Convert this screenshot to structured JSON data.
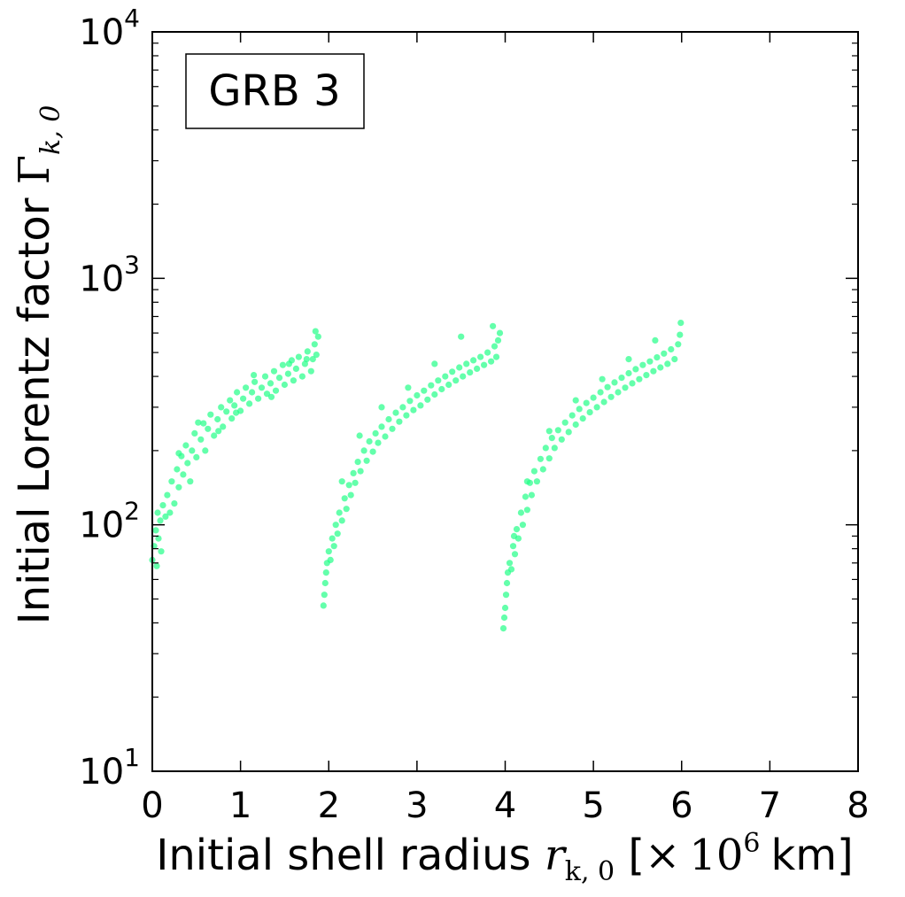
{
  "chart_data": {
    "type": "scatter",
    "title": "",
    "annotation": "GRB 3",
    "xlabel": {
      "text": "Initial shell radius ",
      "math_var": "r",
      "math_sub": "k, 0",
      "bracket_open": " [",
      "times": "×",
      "base": "10",
      "exp": "6",
      "unit": "km",
      "bracket_close": "]"
    },
    "ylabel": {
      "text": "Initial Lorentz factor ",
      "math_var": "Γ",
      "math_sub": "k, 0"
    },
    "xlim": [
      0,
      8
    ],
    "ylim": [
      10,
      10000
    ],
    "yscale": "log",
    "xticks": [
      "0",
      "1",
      "2",
      "3",
      "4",
      "5",
      "6",
      "7",
      "8"
    ],
    "yticks": [
      {
        "base": "10",
        "exp": "1"
      },
      {
        "base": "10",
        "exp": "2"
      },
      {
        "base": "10",
        "exp": "3"
      },
      {
        "base": "10",
        "exp": "4"
      }
    ],
    "grid": false,
    "legend": "none",
    "marker_color": "#22ff88",
    "series": [
      {
        "points": [
          [
            0.0,
            72
          ],
          [
            0.02,
            82
          ],
          [
            0.04,
            95
          ],
          [
            0.05,
            68
          ],
          [
            0.07,
            88
          ],
          [
            0.09,
            104
          ],
          [
            0.1,
            78
          ],
          [
            0.12,
            120
          ],
          [
            0.15,
            108
          ],
          [
            0.17,
            132
          ],
          [
            0.2,
            112
          ],
          [
            0.22,
            150
          ],
          [
            0.25,
            122
          ],
          [
            0.28,
            168
          ],
          [
            0.3,
            142
          ],
          [
            0.33,
            190
          ],
          [
            0.35,
            160
          ],
          [
            0.38,
            210
          ],
          [
            0.4,
            178
          ],
          [
            0.43,
            150
          ],
          [
            0.45,
            200
          ],
          [
            0.48,
            235
          ],
          [
            0.5,
            188
          ],
          [
            0.55,
            222
          ],
          [
            0.58,
            258
          ],
          [
            0.6,
            200
          ],
          [
            0.63,
            245
          ],
          [
            0.66,
            280
          ],
          [
            0.7,
            230
          ],
          [
            0.74,
            268
          ],
          [
            0.78,
            300
          ],
          [
            0.8,
            250
          ],
          [
            0.84,
            288
          ],
          [
            0.88,
            320
          ],
          [
            0.9,
            270
          ],
          [
            0.93,
            305
          ],
          [
            0.96,
            345
          ],
          [
            1.0,
            290
          ],
          [
            1.03,
            325
          ],
          [
            1.06,
            360
          ],
          [
            1.1,
            310
          ],
          [
            1.13,
            345
          ],
          [
            1.16,
            380
          ],
          [
            1.2,
            325
          ],
          [
            1.24,
            360
          ],
          [
            1.28,
            400
          ],
          [
            1.3,
            340
          ],
          [
            1.34,
            375
          ],
          [
            1.38,
            420
          ],
          [
            1.4,
            350
          ],
          [
            1.44,
            395
          ],
          [
            1.48,
            445
          ],
          [
            1.5,
            370
          ],
          [
            1.54,
            410
          ],
          [
            1.58,
            465
          ],
          [
            1.6,
            385
          ],
          [
            1.63,
            430
          ],
          [
            1.66,
            480
          ],
          [
            1.7,
            400
          ],
          [
            1.73,
            450
          ],
          [
            1.76,
            505
          ],
          [
            1.8,
            420
          ],
          [
            1.82,
            470
          ],
          [
            1.84,
            540
          ],
          [
            1.86,
            490
          ],
          [
            1.88,
            580
          ],
          [
            0.06,
            112
          ],
          [
            0.3,
            195
          ],
          [
            0.52,
            260
          ],
          [
            0.75,
            240
          ],
          [
            0.95,
            285
          ],
          [
            1.15,
            405
          ],
          [
            1.35,
            330
          ],
          [
            1.55,
            450
          ],
          [
            1.75,
            470
          ],
          [
            1.85,
            610
          ]
        ]
      },
      {
        "points": [
          [
            1.94,
            47
          ],
          [
            1.95,
            52
          ],
          [
            1.96,
            58
          ],
          [
            1.97,
            64
          ],
          [
            1.98,
            70
          ],
          [
            2.0,
            78
          ],
          [
            2.02,
            72
          ],
          [
            2.04,
            88
          ],
          [
            2.06,
            82
          ],
          [
            2.08,
            100
          ],
          [
            2.1,
            92
          ],
          [
            2.12,
            112
          ],
          [
            2.15,
            104
          ],
          [
            2.18,
            128
          ],
          [
            2.2,
            116
          ],
          [
            2.23,
            145
          ],
          [
            2.25,
            132
          ],
          [
            2.28,
            162
          ],
          [
            2.3,
            148
          ],
          [
            2.33,
            180
          ],
          [
            2.36,
            165
          ],
          [
            2.4,
            200
          ],
          [
            2.43,
            182
          ],
          [
            2.46,
            218
          ],
          [
            2.5,
            198
          ],
          [
            2.53,
            235
          ],
          [
            2.56,
            215
          ],
          [
            2.6,
            250
          ],
          [
            2.64,
            228
          ],
          [
            2.68,
            268
          ],
          [
            2.72,
            245
          ],
          [
            2.76,
            285
          ],
          [
            2.8,
            262
          ],
          [
            2.84,
            300
          ],
          [
            2.88,
            278
          ],
          [
            2.92,
            318
          ],
          [
            2.96,
            292
          ],
          [
            3.0,
            335
          ],
          [
            3.04,
            305
          ],
          [
            3.08,
            350
          ],
          [
            3.12,
            322
          ],
          [
            3.16,
            368
          ],
          [
            3.2,
            338
          ],
          [
            3.24,
            385
          ],
          [
            3.28,
            355
          ],
          [
            3.32,
            400
          ],
          [
            3.36,
            370
          ],
          [
            3.4,
            418
          ],
          [
            3.44,
            385
          ],
          [
            3.48,
            435
          ],
          [
            3.52,
            400
          ],
          [
            3.56,
            450
          ],
          [
            3.6,
            415
          ],
          [
            3.64,
            465
          ],
          [
            3.68,
            430
          ],
          [
            3.72,
            480
          ],
          [
            3.76,
            445
          ],
          [
            3.8,
            500
          ],
          [
            3.84,
            460
          ],
          [
            3.88,
            530
          ],
          [
            3.9,
            480
          ],
          [
            3.92,
            560
          ],
          [
            3.94,
            600
          ],
          [
            3.86,
            640
          ],
          [
            3.5,
            580
          ],
          [
            3.2,
            450
          ],
          [
            2.9,
            360
          ],
          [
            2.6,
            300
          ],
          [
            2.35,
            230
          ],
          [
            2.15,
            150
          ]
        ]
      },
      {
        "points": [
          [
            3.98,
            38
          ],
          [
            3.99,
            42
          ],
          [
            4.0,
            46
          ],
          [
            4.01,
            52
          ],
          [
            4.02,
            58
          ],
          [
            4.03,
            64
          ],
          [
            4.05,
            70
          ],
          [
            4.07,
            66
          ],
          [
            4.09,
            82
          ],
          [
            4.11,
            76
          ],
          [
            4.13,
            96
          ],
          [
            4.15,
            88
          ],
          [
            4.18,
            112
          ],
          [
            4.2,
            100
          ],
          [
            4.23,
            130
          ],
          [
            4.25,
            115
          ],
          [
            4.28,
            148
          ],
          [
            4.3,
            132
          ],
          [
            4.33,
            165
          ],
          [
            4.36,
            150
          ],
          [
            4.4,
            185
          ],
          [
            4.43,
            168
          ],
          [
            4.46,
            205
          ],
          [
            4.5,
            186
          ],
          [
            4.53,
            225
          ],
          [
            4.56,
            205
          ],
          [
            4.6,
            242
          ],
          [
            4.64,
            222
          ],
          [
            4.68,
            260
          ],
          [
            4.72,
            238
          ],
          [
            4.76,
            278
          ],
          [
            4.8,
            255
          ],
          [
            4.84,
            295
          ],
          [
            4.88,
            270
          ],
          [
            4.92,
            312
          ],
          [
            4.96,
            286
          ],
          [
            5.0,
            328
          ],
          [
            5.04,
            300
          ],
          [
            5.08,
            345
          ],
          [
            5.12,
            315
          ],
          [
            5.16,
            362
          ],
          [
            5.2,
            330
          ],
          [
            5.24,
            378
          ],
          [
            5.28,
            345
          ],
          [
            5.32,
            395
          ],
          [
            5.36,
            360
          ],
          [
            5.4,
            412
          ],
          [
            5.44,
            375
          ],
          [
            5.48,
            428
          ],
          [
            5.52,
            390
          ],
          [
            5.56,
            445
          ],
          [
            5.6,
            405
          ],
          [
            5.64,
            460
          ],
          [
            5.68,
            420
          ],
          [
            5.72,
            478
          ],
          [
            5.76,
            435
          ],
          [
            5.8,
            495
          ],
          [
            5.84,
            450
          ],
          [
            5.88,
            515
          ],
          [
            5.92,
            470
          ],
          [
            5.96,
            540
          ],
          [
            5.98,
            590
          ],
          [
            5.99,
            660
          ],
          [
            5.7,
            560
          ],
          [
            5.4,
            470
          ],
          [
            5.1,
            390
          ],
          [
            4.8,
            320
          ],
          [
            4.5,
            240
          ],
          [
            4.25,
            150
          ],
          [
            4.1,
            90
          ]
        ]
      }
    ]
  }
}
